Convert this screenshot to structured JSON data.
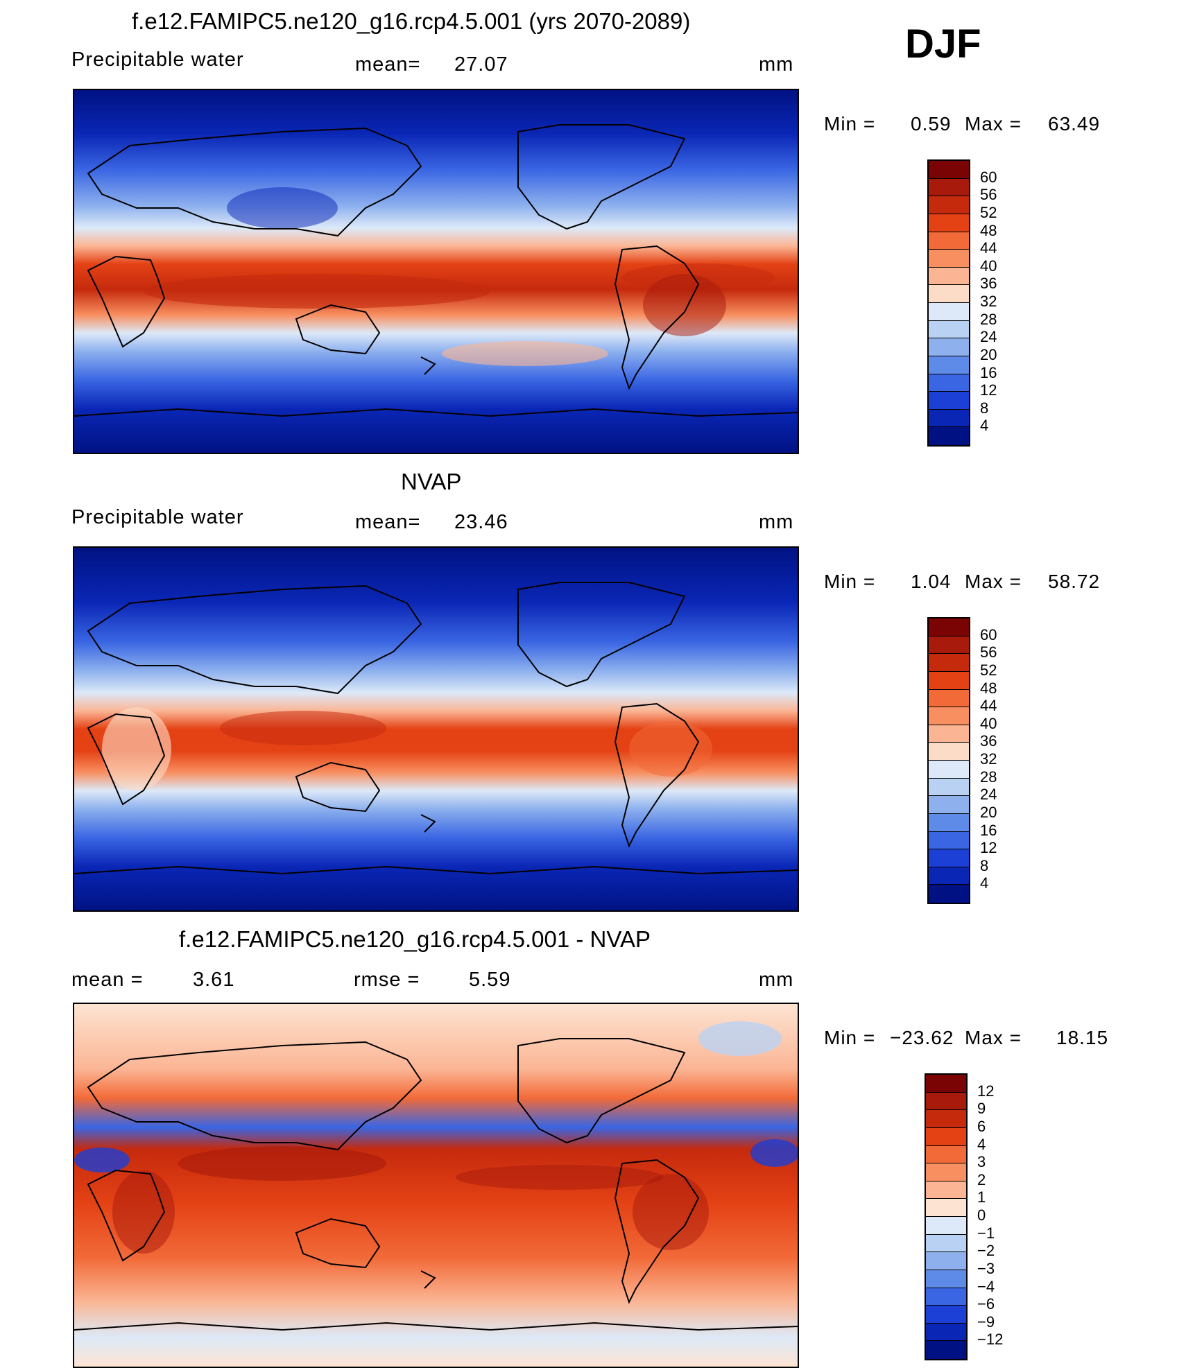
{
  "header": {
    "season": "DJF"
  },
  "panels": [
    {
      "id": "model",
      "title": "f.e12.FAMIPC5.ne120_g16.rcp4.5.001 (yrs 2070-2089)",
      "left_label": "Precipitable  water",
      "stat_label": "mean=",
      "stat_value": "27.07",
      "units": "mm",
      "min_label": "Min  =",
      "min_value": "0.59",
      "max_label": "Max  =",
      "max_value": "63.49",
      "colorbar": {
        "levels": [
          "60",
          "56",
          "52",
          "48",
          "44",
          "40",
          "36",
          "32",
          "28",
          "24",
          "20",
          "16",
          "12",
          "8",
          "4"
        ],
        "colors": [
          "#7a0403",
          "#a81a0b",
          "#c52a0d",
          "#e44215",
          "#f26a38",
          "#f88f61",
          "#fbb594",
          "#fcdcc6",
          "#dde9f8",
          "#b9d2f3",
          "#8eb1ee",
          "#5f8be8",
          "#3a66e3",
          "#1c3fd6",
          "#0a26b5",
          "#001283"
        ]
      }
    },
    {
      "id": "obs",
      "title": "NVAP",
      "left_label": "Precipitable  water",
      "stat_label": "mean=",
      "stat_value": "23.46",
      "units": "mm",
      "min_label": "Min  =",
      "min_value": "1.04",
      "max_label": "Max  =",
      "max_value": "58.72",
      "colorbar": {
        "levels": [
          "60",
          "56",
          "52",
          "48",
          "44",
          "40",
          "36",
          "32",
          "28",
          "24",
          "20",
          "16",
          "12",
          "8",
          "4"
        ],
        "colors": [
          "#7a0403",
          "#a81a0b",
          "#c52a0d",
          "#e44215",
          "#f26a38",
          "#f88f61",
          "#fbb594",
          "#fcdcc6",
          "#dde9f8",
          "#b9d2f3",
          "#8eb1ee",
          "#5f8be8",
          "#3a66e3",
          "#1c3fd6",
          "#0a26b5",
          "#001283"
        ]
      }
    },
    {
      "id": "diff",
      "title": "f.e12.FAMIPC5.ne120_g16.rcp4.5.001 - NVAP",
      "left_label": "mean  =",
      "left_value": "3.61",
      "stat_label": "rmse  =",
      "stat_value": "5.59",
      "units": "mm",
      "min_label": "Min  =",
      "min_value": "−23.62",
      "max_label": "Max  =",
      "max_value": "18.15",
      "colorbar": {
        "levels": [
          "12",
          "9",
          "6",
          "4",
          "3",
          "2",
          "1",
          "0",
          "−1",
          "−2",
          "−3",
          "−4",
          "−6",
          "−9",
          "−12"
        ],
        "colors": [
          "#7a0403",
          "#a81a0b",
          "#c52a0d",
          "#e44215",
          "#f26a38",
          "#f88f61",
          "#fbb594",
          "#fde4d2",
          "#dde9f8",
          "#b9d2f3",
          "#8eb1ee",
          "#5f8be8",
          "#3a66e3",
          "#1c3fd6",
          "#0a26b5",
          "#001283"
        ]
      }
    }
  ]
}
